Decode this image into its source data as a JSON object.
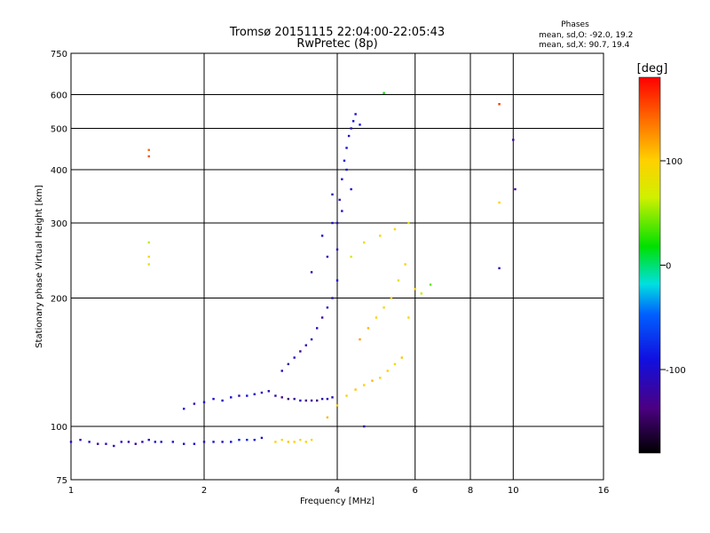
{
  "chart_data": {
    "type": "scatter",
    "title": "Tromsø 20151115 22:04:00-22:05:43",
    "subtitle": "RwPretec (8p)",
    "xlabel": "Frequency [MHz]",
    "ylabel": "Stationary phase Virtual Height [km]",
    "x_scale": "log",
    "y_scale": "log",
    "xlim": [
      1,
      16
    ],
    "ylim": [
      75,
      750
    ],
    "x_ticks": [
      "1",
      "2",
      "4",
      "6",
      "8",
      "10",
      "16"
    ],
    "y_ticks": [
      "75",
      "100",
      "200",
      "300",
      "400",
      "500",
      "600",
      "750"
    ],
    "grid": true,
    "phase_stats": {
      "heading": "Phases",
      "line_o": "mean, sd,O: -92.0, 19.2",
      "line_x": "mean, sd,X:  90.7, 19.4"
    },
    "colorbar": {
      "label": "[deg]",
      "range": [
        -180,
        180
      ],
      "ticks": [
        "100",
        "0",
        "-100"
      ],
      "tick_values": [
        100,
        0,
        -100
      ]
    },
    "series": [
      {
        "mode": "O",
        "points_note": "low-band trace near 90 km",
        "x": [
          1.0,
          1.05,
          1.1,
          1.15,
          1.2,
          1.25,
          1.3,
          1.35,
          1.4,
          1.45,
          1.5,
          1.55,
          1.6,
          1.7,
          1.8,
          1.9,
          2.0,
          2.1,
          2.2,
          2.3,
          2.4,
          2.5,
          2.6,
          2.7
        ],
        "y": [
          92,
          93,
          92,
          91,
          91,
          90,
          92,
          92,
          91,
          92,
          93,
          92,
          92,
          92,
          91,
          91,
          92,
          92,
          92,
          92,
          93,
          93,
          93,
          94
        ],
        "phase": [
          -100,
          -110,
          -100,
          -120,
          -105,
          -110,
          -100,
          -115,
          -120,
          -110,
          -100,
          -90,
          -100,
          -95,
          -100,
          -90,
          -100,
          -95,
          -100,
          -90,
          -85,
          -80,
          -95,
          -90
        ]
      },
      {
        "mode": "X",
        "points_note": "low-band X trace near 92 km",
        "x": [
          2.9,
          3.0,
          3.1,
          3.2,
          3.3,
          3.4,
          3.5
        ],
        "y": [
          92,
          93,
          92,
          92,
          93,
          92,
          93
        ],
        "phase": [
          100,
          95,
          105,
          100,
          90,
          100,
          95
        ]
      },
      {
        "mode": "O",
        "points_note": "E/F1 trace near 115 km",
        "x": [
          1.8,
          1.9,
          2.0,
          2.1,
          2.2,
          2.3,
          2.4,
          2.5,
          2.6,
          2.7,
          2.8,
          2.9,
          3.0,
          3.1,
          3.2,
          3.3,
          3.4,
          3.5,
          3.6,
          3.7,
          3.8,
          3.9
        ],
        "y": [
          110,
          113,
          114,
          116,
          115,
          117,
          118,
          118,
          119,
          120,
          121,
          118,
          117,
          116,
          116,
          115,
          115,
          115,
          115,
          116,
          116,
          117
        ],
        "phase": [
          -100,
          -110,
          -95,
          -100,
          -105,
          -100,
          -110,
          -90,
          -100,
          -105,
          -110,
          -120,
          -130,
          -140,
          -125,
          -110,
          -130,
          -120,
          -140,
          -115,
          -100,
          -110
        ]
      },
      {
        "mode": "O",
        "points_note": "F-region rise 130-600 km",
        "x": [
          3.0,
          3.1,
          3.2,
          3.3,
          3.4,
          3.5,
          3.6,
          3.7,
          3.8,
          3.9,
          4.0,
          4.0,
          4.0,
          4.05,
          4.1,
          4.15,
          4.2,
          4.25,
          4.3,
          4.35,
          4.4,
          4.5,
          3.8,
          3.9,
          4.1,
          4.2,
          3.5,
          3.7,
          3.9,
          4.3
        ],
        "y": [
          135,
          140,
          145,
          150,
          155,
          160,
          170,
          180,
          190,
          200,
          220,
          260,
          300,
          340,
          380,
          420,
          450,
          480,
          500,
          520,
          540,
          510,
          250,
          300,
          320,
          400,
          230,
          280,
          350,
          360
        ],
        "phase": [
          -110,
          -120,
          -100,
          -130,
          -110,
          -100,
          -105,
          -120,
          -100,
          -110,
          -95,
          -100,
          -110,
          -105,
          -100,
          -95,
          -90,
          -100,
          -105,
          -95,
          -100,
          -90,
          -110,
          -100,
          -105,
          -95,
          -115,
          -100,
          -110,
          -100
        ]
      },
      {
        "mode": "X",
        "points_note": "F-region X trace 110-300 km",
        "x": [
          3.8,
          4.0,
          4.2,
          4.4,
          4.6,
          4.8,
          5.0,
          5.2,
          5.4,
          5.6,
          5.8,
          6.0,
          4.5,
          4.7,
          4.9,
          5.1,
          5.3,
          5.5,
          5.7,
          4.3,
          4.6,
          5.0,
          5.4,
          5.8,
          6.2,
          6.5
        ],
        "y": [
          105,
          112,
          118,
          122,
          125,
          128,
          130,
          135,
          140,
          145,
          180,
          210,
          160,
          170,
          180,
          190,
          200,
          220,
          240,
          250,
          270,
          280,
          290,
          300,
          205,
          215
        ],
        "phase": [
          110,
          100,
          95,
          105,
          100,
          110,
          95,
          100,
          90,
          105,
          95,
          100,
          120,
          110,
          100,
          90,
          95,
          85,
          100,
          80,
          90,
          95,
          100,
          85,
          60,
          40
        ]
      },
      {
        "mode": "O",
        "points_note": "isolated echoes",
        "x": [
          1.5,
          1.5,
          1.5,
          1.5,
          1.5,
          9.3,
          9.3,
          9.3,
          10.0,
          10.1,
          4.6,
          5.1
        ],
        "y": [
          430,
          445,
          270,
          250,
          240,
          570,
          335,
          235,
          470,
          360,
          100,
          605
        ],
        "phase": [
          150,
          140,
          60,
          90,
          80,
          160,
          100,
          -110,
          -120,
          -130,
          -110,
          20
        ]
      }
    ]
  }
}
